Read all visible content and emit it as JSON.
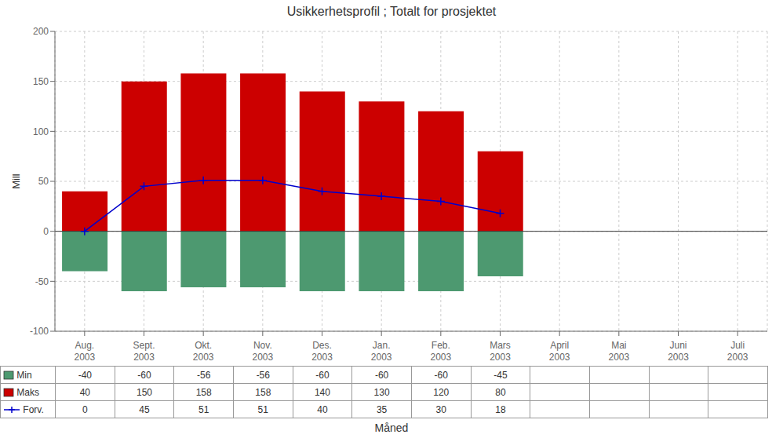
{
  "chart_data": {
    "type": "bar",
    "title": "Usikkerhetsprofil ; Totalt for prosjektet",
    "categories": [
      "Aug.\n2003",
      "Sept.\n2003",
      "Okt.\n2003",
      "Nov.\n2003",
      "Des.\n2003",
      "Jan.\n2003",
      "Feb.\n2003",
      "Mars\n2003",
      "April\n2003",
      "Mai\n2003",
      "Juni\n2003",
      "Juli\n2003"
    ],
    "series": [
      {
        "name": "Min",
        "type": "bar",
        "color": "#4d9970",
        "values": [
          -40,
          -60,
          -56,
          -56,
          -60,
          -60,
          -60,
          -45,
          null,
          null,
          null,
          null
        ]
      },
      {
        "name": "Maks",
        "type": "bar",
        "color": "#cc0000",
        "values": [
          40,
          150,
          158,
          158,
          140,
          130,
          120,
          80,
          null,
          null,
          null,
          null
        ]
      },
      {
        "name": "Forv.",
        "type": "line",
        "color": "#0000cc",
        "marker": "plus",
        "values": [
          0,
          45,
          51,
          51,
          40,
          35,
          30,
          18,
          null,
          null,
          null,
          null
        ]
      }
    ],
    "xlabel": "Måned",
    "ylabel": "Mill",
    "ylim": [
      -100,
      200
    ],
    "yticks": [
      -100,
      -50,
      0,
      50,
      100,
      150,
      200
    ],
    "grid": true,
    "data_labels": true,
    "legend": "bottom"
  }
}
